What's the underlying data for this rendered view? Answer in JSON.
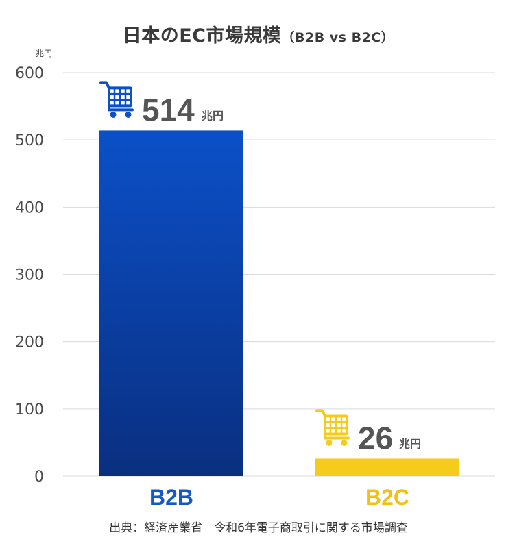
{
  "title_main": "日本のEC市場規模",
  "title_sub": "（B2B vs B2C）",
  "source": "出典：経済産業省　令和6年電子商取引に関する市場調査",
  "colors": {
    "b2b_top": "#0b50c8",
    "b2b_bottom": "#0a2f80",
    "b2b_label": "#1558c7",
    "b2c": "#f6cc1c",
    "b2c_label": "#f2c018",
    "grid": "#d9d9d9"
  },
  "chart_data": {
    "type": "bar",
    "title": "日本のEC市場規模（B2B vs B2C）",
    "ylabel": "兆円",
    "ylim": [
      0,
      600
    ],
    "yticks": [
      0,
      100,
      200,
      300,
      400,
      500,
      600
    ],
    "grid": true,
    "categories": [
      "B2B",
      "B2C"
    ],
    "values": [
      514,
      26
    ],
    "data_labels": [
      "514",
      "26"
    ],
    "value_unit": "兆円",
    "icons": [
      "shopping-cart-icon",
      "shopping-cart-icon"
    ]
  }
}
